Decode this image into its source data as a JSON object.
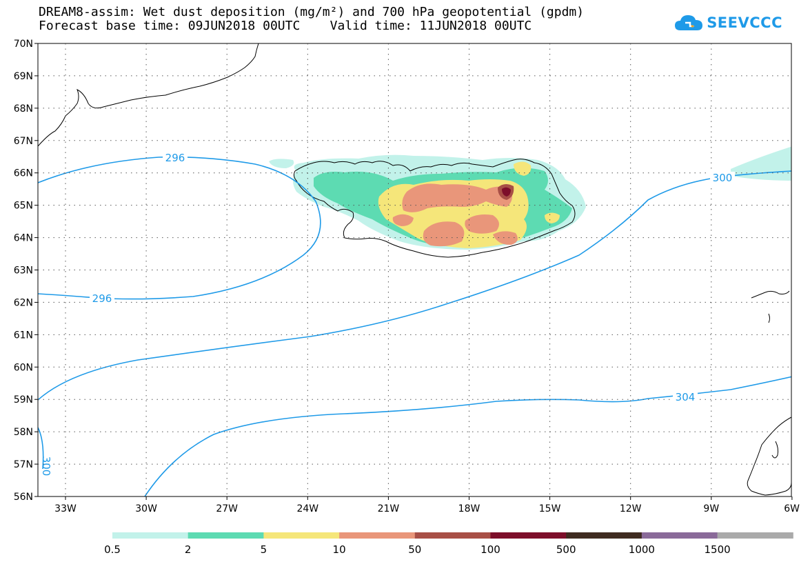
{
  "title": {
    "line1": "DREAM8-assim: Wet dust deposition (mg/m²) and 700 hPa geopotential (gpdm)",
    "line2": "Forecast base time: 09JUN2018 00UTC    Valid time: 11JUN2018 00UTC"
  },
  "logo": {
    "text": "SEEVCCC"
  },
  "lat_labels": [
    "70N",
    "69N",
    "68N",
    "67N",
    "66N",
    "65N",
    "64N",
    "63N",
    "62N",
    "61N",
    "60N",
    "59N",
    "58N",
    "57N",
    "56N"
  ],
  "lon_labels": [
    "33W",
    "30W",
    "27W",
    "24W",
    "21W",
    "18W",
    "15W",
    "12W",
    "9W",
    "6W"
  ],
  "contour_labels": [
    "296",
    "296",
    "300",
    "304",
    "300"
  ],
  "legend": {
    "labels": [
      "0.5",
      "2",
      "5",
      "10",
      "50",
      "100",
      "500",
      "1000",
      "1500"
    ],
    "colors": [
      "#c2f2ea",
      "#5ddbb2",
      "#f5e67a",
      "#e9967a",
      "#a84f46",
      "#7d0e2a",
      "#3f2b20",
      "#8a6a99",
      "#aaaaaa"
    ]
  },
  "colors": {
    "contour": "#1e9ae8",
    "coast": "#000000",
    "grid": "#444444"
  }
}
